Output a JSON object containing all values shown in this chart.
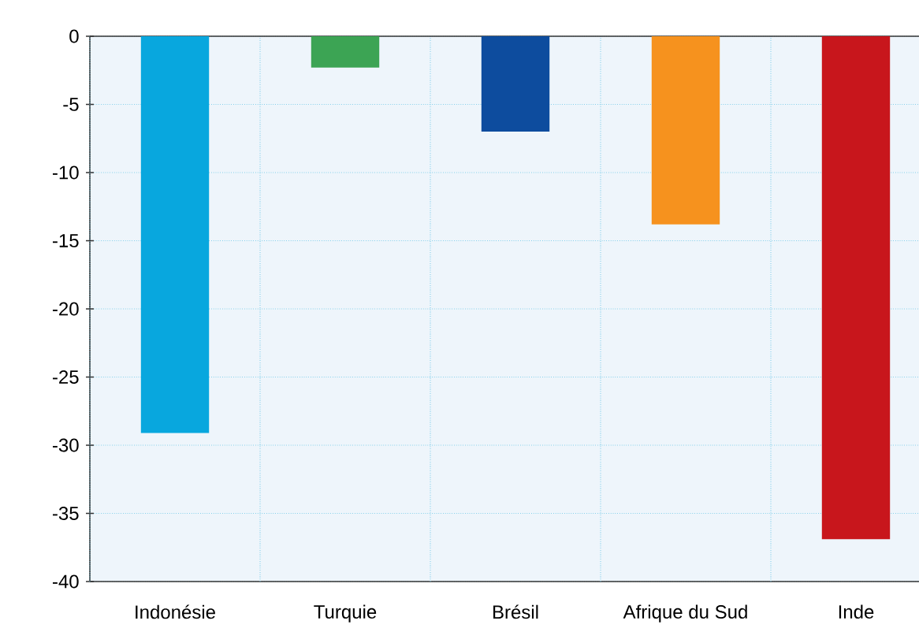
{
  "chart_data": {
    "type": "bar",
    "categories": [
      "Indonésie",
      "Turquie",
      "Brésil",
      "Afrique du Sud",
      "Inde"
    ],
    "values": [
      -29.1,
      -2.3,
      -7.0,
      -13.8,
      -36.9
    ],
    "colors": [
      "#08a7de",
      "#3ca454",
      "#0d4c9e",
      "#f6921e",
      "#c8161c"
    ],
    "ylim": [
      -40,
      0
    ],
    "yticks": [
      0,
      -5,
      -10,
      -15,
      -20,
      -25,
      -30,
      -35,
      -40
    ],
    "grid": true
  }
}
